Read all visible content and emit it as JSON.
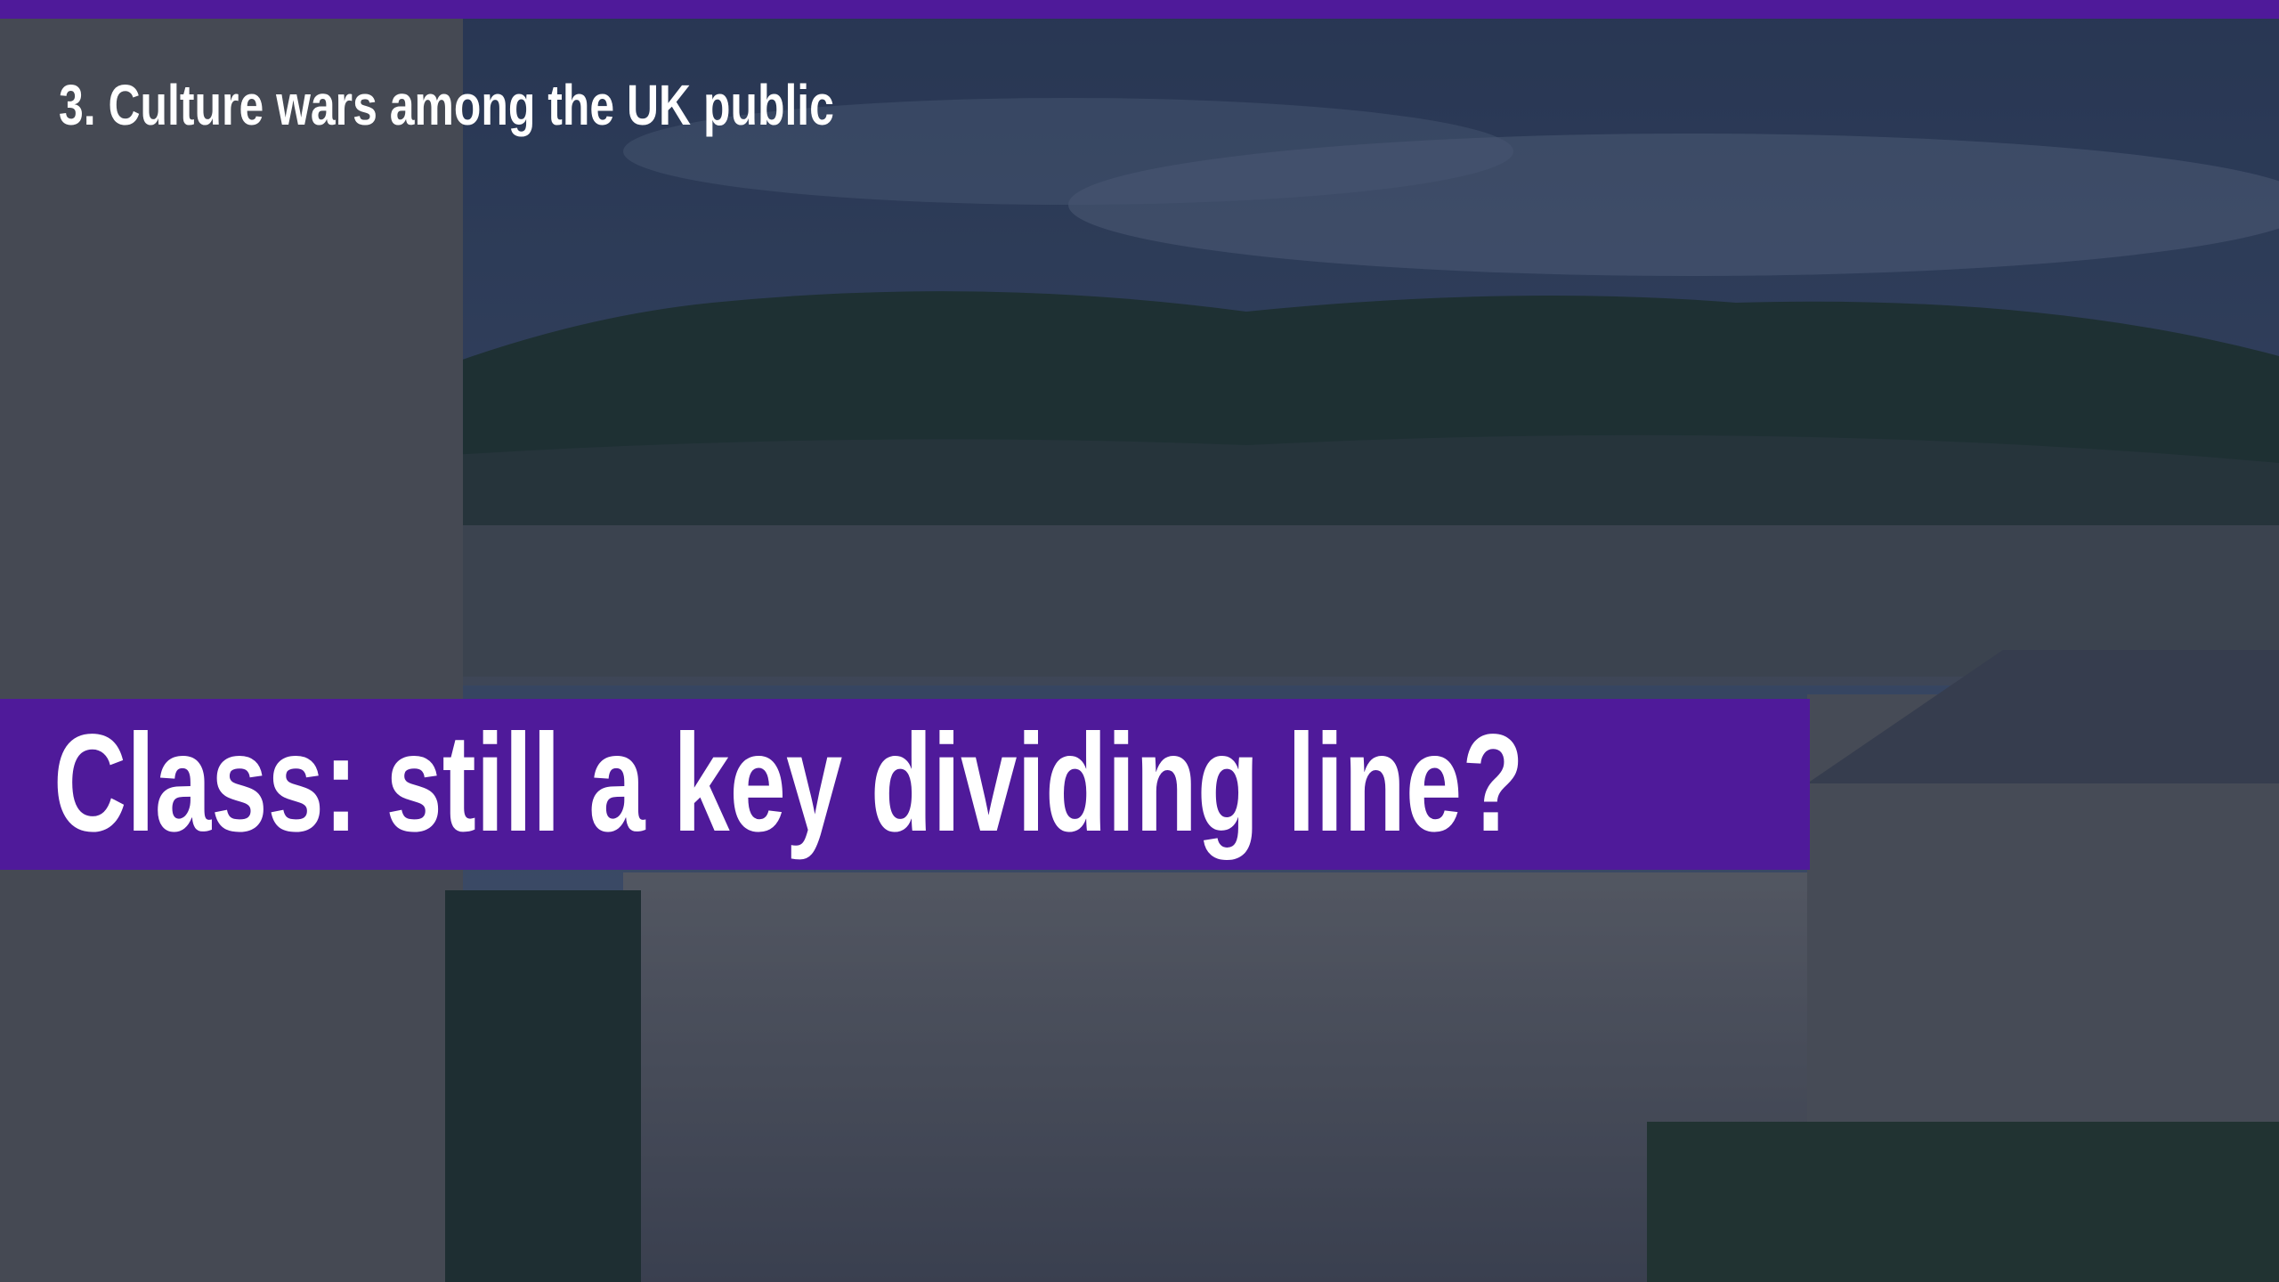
{
  "header": {
    "section": "3. Culture wars among the UK public"
  },
  "title": "Class: still a key dividing line?"
}
